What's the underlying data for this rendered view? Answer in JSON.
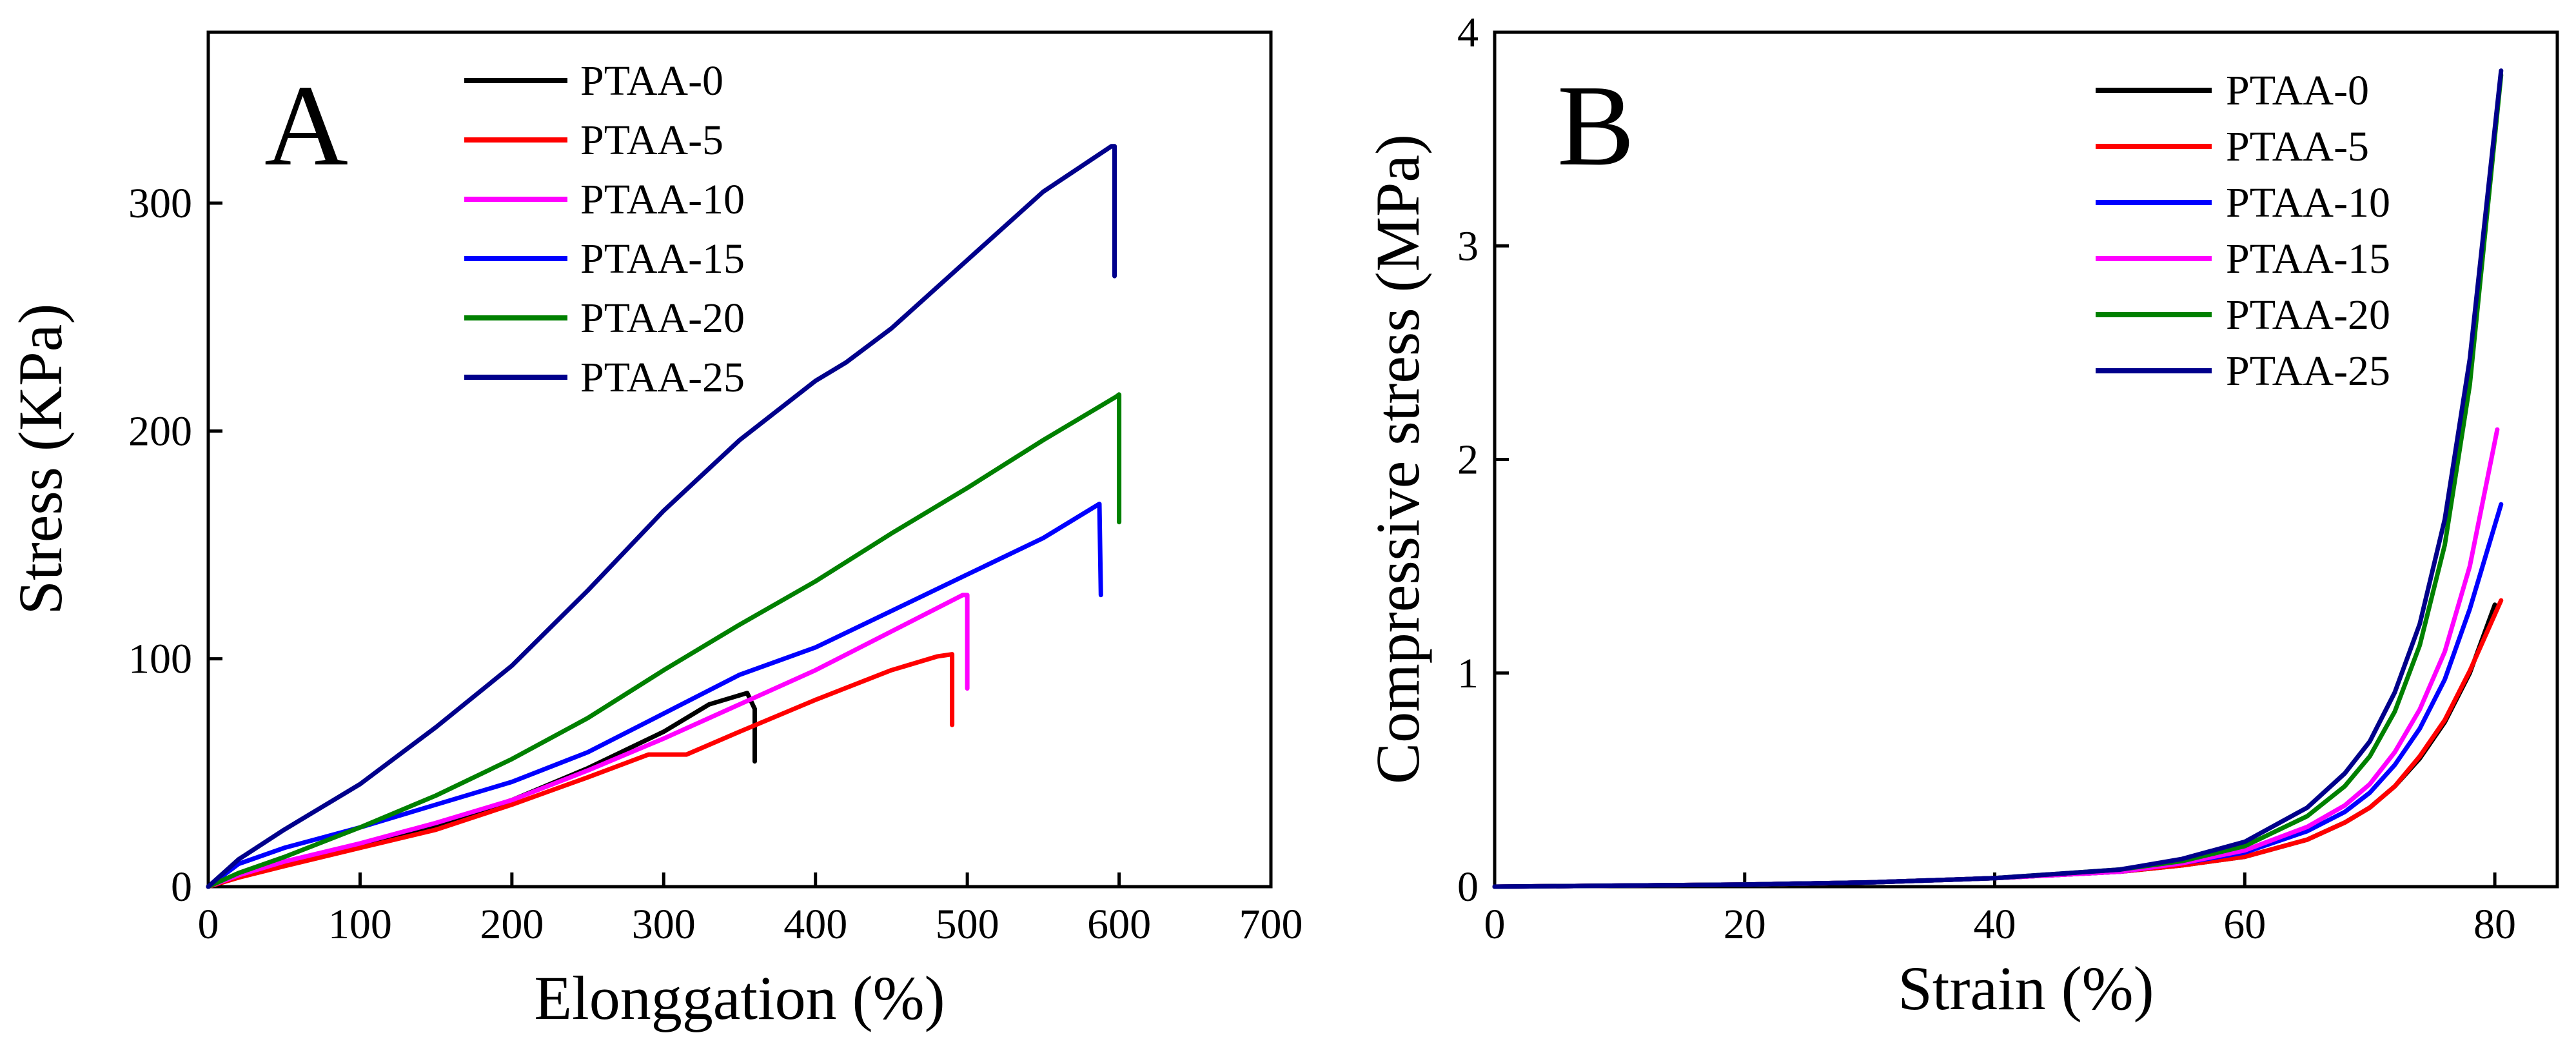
{
  "chart_data": [
    {
      "type": "line",
      "panel_label": "A",
      "title": "",
      "xlabel": "Elonggation (%)",
      "ylabel": "Stress (KPa)",
      "xlim": [
        0,
        700
      ],
      "ylim": [
        0,
        375
      ],
      "xticks": [
        0,
        100,
        200,
        300,
        400,
        500,
        600,
        700
      ],
      "yticks": [
        0,
        100,
        200,
        300
      ],
      "legend_position": "top-center",
      "series": [
        {
          "name": "PTAA-0",
          "color": "#000000",
          "x": [
            0,
            20,
            50,
            100,
            150,
            200,
            250,
            300,
            330,
            355,
            360,
            360
          ],
          "y": [
            0,
            5,
            10,
            18,
            27,
            38,
            52,
            68,
            80,
            85,
            78,
            55
          ]
        },
        {
          "name": "PTAA-5",
          "color": "#ff0000",
          "x": [
            0,
            20,
            50,
            100,
            150,
            200,
            250,
            290,
            315,
            350,
            400,
            450,
            480,
            490,
            490
          ],
          "y": [
            0,
            4,
            9,
            17,
            25,
            36,
            48,
            58,
            58,
            68,
            82,
            95,
            101,
            102,
            71
          ]
        },
        {
          "name": "PTAA-10",
          "color": "#ff00ff",
          "x": [
            0,
            20,
            50,
            100,
            150,
            200,
            250,
            300,
            350,
            400,
            450,
            497,
            500,
            500
          ],
          "y": [
            0,
            5,
            11,
            19,
            28,
            38,
            51,
            65,
            80,
            95,
            112,
            128,
            128,
            87
          ]
        },
        {
          "name": "PTAA-15",
          "color": "#0000ff",
          "x": [
            0,
            20,
            50,
            100,
            150,
            200,
            250,
            300,
            350,
            400,
            450,
            500,
            550,
            587,
            588
          ],
          "y": [
            0,
            10,
            17,
            26,
            36,
            46,
            59,
            76,
            93,
            105,
            121,
            137,
            153,
            168,
            128
          ]
        },
        {
          "name": "PTAA-20",
          "color": "#008000",
          "x": [
            0,
            20,
            50,
            100,
            150,
            200,
            250,
            300,
            350,
            400,
            450,
            500,
            550,
            598,
            600,
            600
          ],
          "y": [
            0,
            6,
            13,
            26,
            40,
            56,
            74,
            95,
            115,
            134,
            155,
            175,
            196,
            215,
            216,
            160
          ]
        },
        {
          "name": "PTAA-25",
          "color": "#00008b",
          "x": [
            0,
            20,
            50,
            100,
            150,
            200,
            250,
            300,
            350,
            400,
            420,
            450,
            500,
            550,
            595,
            597,
            597
          ],
          "y": [
            0,
            12,
            25,
            45,
            70,
            97,
            130,
            165,
            196,
            222,
            230,
            245,
            275,
            305,
            325,
            325,
            268
          ]
        }
      ]
    },
    {
      "type": "line",
      "panel_label": "B",
      "title": "",
      "xlabel": "Strain (%)",
      "ylabel": "Compressive stress (MPa)",
      "xlim": [
        0,
        85
      ],
      "ylim": [
        0,
        4
      ],
      "xticks": [
        0,
        20,
        40,
        60,
        80
      ],
      "yticks": [
        0,
        1,
        2,
        3,
        4
      ],
      "legend_position": "top-right",
      "series": [
        {
          "name": "PTAA-0",
          "color": "#000000",
          "x": [
            0,
            20,
            30,
            40,
            50,
            55,
            60,
            65,
            68,
            70,
            72,
            74,
            76,
            78,
            80
          ],
          "y": [
            0,
            0.01,
            0.02,
            0.04,
            0.07,
            0.1,
            0.14,
            0.22,
            0.3,
            0.37,
            0.47,
            0.6,
            0.77,
            1.0,
            1.32
          ]
        },
        {
          "name": "PTAA-5",
          "color": "#ff0000",
          "x": [
            0,
            20,
            30,
            40,
            50,
            55,
            60,
            65,
            68,
            70,
            72,
            74,
            76,
            78,
            80.5
          ],
          "y": [
            0,
            0.01,
            0.02,
            0.04,
            0.07,
            0.1,
            0.14,
            0.22,
            0.3,
            0.37,
            0.47,
            0.61,
            0.78,
            1.01,
            1.34
          ]
        },
        {
          "name": "PTAA-10",
          "color": "#0000ff",
          "x": [
            0,
            20,
            30,
            40,
            50,
            55,
            60,
            65,
            68,
            70,
            72,
            74,
            76,
            78,
            80.5
          ],
          "y": [
            0,
            0.01,
            0.02,
            0.04,
            0.07,
            0.11,
            0.16,
            0.26,
            0.35,
            0.44,
            0.57,
            0.74,
            0.97,
            1.3,
            1.79
          ]
        },
        {
          "name": "PTAA-15",
          "color": "#ff00ff",
          "x": [
            0,
            20,
            30,
            40,
            50,
            55,
            60,
            65,
            68,
            70,
            72,
            74,
            76,
            78,
            80.2
          ],
          "y": [
            0,
            0.01,
            0.02,
            0.04,
            0.07,
            0.11,
            0.17,
            0.28,
            0.38,
            0.48,
            0.63,
            0.83,
            1.1,
            1.5,
            2.14
          ]
        },
        {
          "name": "PTAA-20",
          "color": "#008000",
          "x": [
            0,
            20,
            30,
            40,
            50,
            55,
            60,
            65,
            68,
            70,
            72,
            74,
            76,
            78,
            80.5
          ],
          "y": [
            0,
            0.01,
            0.02,
            0.04,
            0.08,
            0.12,
            0.19,
            0.33,
            0.47,
            0.61,
            0.82,
            1.13,
            1.6,
            2.35,
            3.8
          ]
        },
        {
          "name": "PTAA-25",
          "color": "#00008b",
          "x": [
            0,
            20,
            30,
            40,
            50,
            55,
            60,
            65,
            68,
            70,
            72,
            74,
            76,
            78,
            80.5
          ],
          "y": [
            0,
            0.01,
            0.02,
            0.04,
            0.08,
            0.13,
            0.21,
            0.37,
            0.53,
            0.68,
            0.91,
            1.23,
            1.72,
            2.47,
            3.82
          ]
        }
      ]
    }
  ]
}
